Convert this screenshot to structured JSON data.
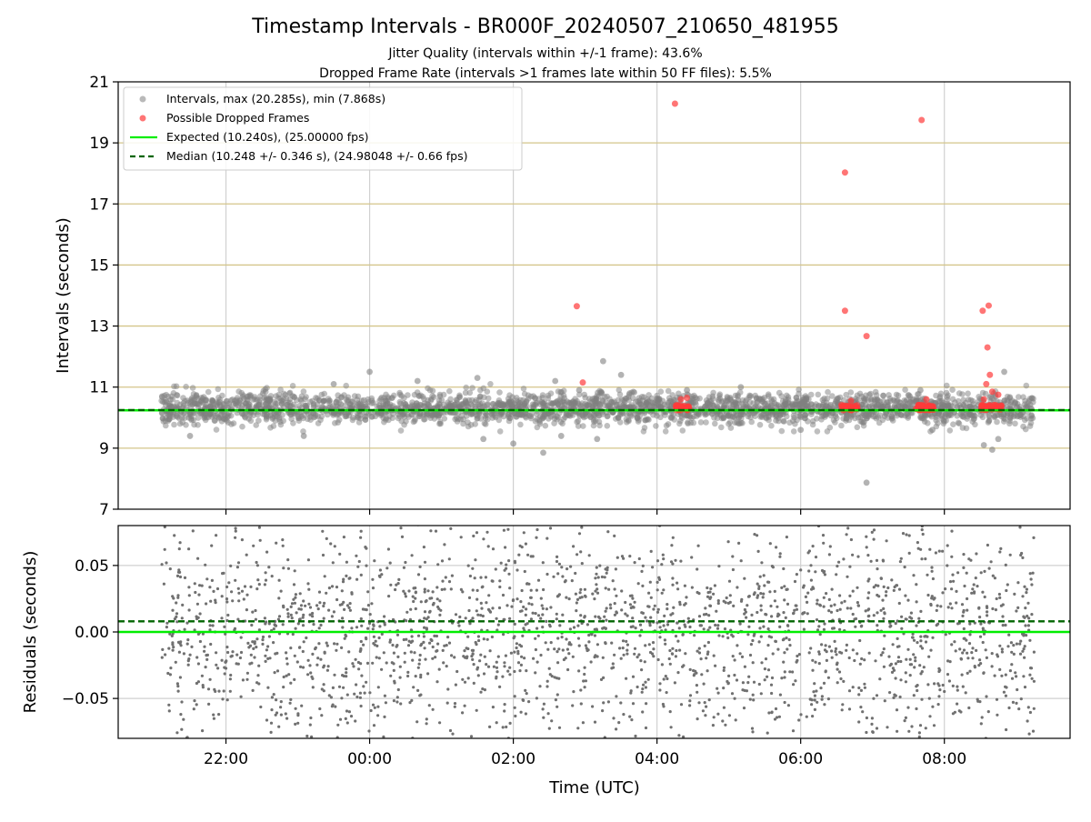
{
  "chart_data": {
    "type": "scatter",
    "title": "Timestamp Intervals - BR000F_20240507_210650_481955",
    "subtitle_lines": [
      "Jitter Quality (intervals within +/-1 frame): 43.6%",
      "Dropped Frame Rate (intervals >1 frames late within 50 FF files): 5.5%"
    ],
    "xlabel": "Time (UTC)",
    "x_unit": "hours (UTC, continuing past midnight)",
    "x_range": [
      "20:30",
      "09:45"
    ],
    "x_tick_labels": [
      "22:00",
      "00:00",
      "02:00",
      "04:00",
      "06:00",
      "08:00"
    ],
    "x_ticks": [
      "22:00",
      "00:00",
      "02:00",
      "04:00",
      "06:00",
      "08:00"
    ],
    "grid": true,
    "top_panel": {
      "ylabel": "Intervals (seconds)",
      "ylim": [
        7,
        21
      ],
      "y_ticks": [
        7,
        9,
        11,
        13,
        15,
        17,
        19,
        21
      ],
      "hlines_frame_grid": [
        9,
        11,
        13,
        15,
        17,
        19
      ],
      "expected": 10.24,
      "median": 10.248,
      "legend_position": "upper-left",
      "legend": [
        "Intervals, max (20.285s), min (7.868s)",
        "Possible Dropped Frames",
        "Expected (10.240s), (25.00000 fps)",
        "Median (10.248 +/- 0.346 s), (24.98048 +/- 0.66 fps)"
      ],
      "series": [
        {
          "name": "Intervals, max (20.285s), min (7.868s)",
          "color": "#808080",
          "band": {
            "x_start": "21:06",
            "x_end": "09:15",
            "center": 10.3,
            "spread": 0.3
          },
          "outliers": [
            [
              "00:00",
              11.5
            ],
            [
              "02:35",
              11.2
            ],
            [
              "03:15",
              11.85
            ],
            [
              "03:10",
              9.3
            ],
            [
              "02:25",
              8.85
            ],
            [
              "02:00",
              9.15
            ],
            [
              "06:00",
              9.6
            ],
            [
              "06:55",
              7.87
            ],
            [
              "08:50",
              11.5
            ],
            [
              "08:45",
              9.3
            ],
            [
              "08:40",
              8.95
            ],
            [
              "08:33",
              9.1
            ],
            [
              "21:30",
              9.4
            ],
            [
              "23:05",
              9.4
            ],
            [
              "01:30",
              11.3
            ],
            [
              "23:30",
              11.1
            ],
            [
              "00:40",
              11.2
            ],
            [
              "01:35",
              9.3
            ],
            [
              "03:30",
              11.4
            ],
            [
              "05:10",
              11.0
            ],
            [
              "04:25",
              10.9
            ],
            [
              "07:40",
              10.9
            ],
            [
              "07:50",
              9.6
            ],
            [
              "02:40",
              9.4
            ],
            [
              "02:55",
              10.9
            ]
          ]
        },
        {
          "name": "Possible Dropped Frames",
          "color": "#ff3b3b",
          "points": [
            [
              "02:53",
              13.65
            ],
            [
              "02:58",
              11.15
            ],
            [
              "04:15",
              20.285
            ],
            [
              "06:37",
              18.03
            ],
            [
              "06:37",
              13.5
            ],
            [
              "06:55",
              12.67
            ],
            [
              "07:41",
              19.75
            ],
            [
              "08:32",
              13.5
            ],
            [
              "08:37",
              13.67
            ],
            [
              "08:36",
              12.3
            ],
            [
              "08:38",
              11.4
            ],
            [
              "08:35",
              11.1
            ],
            [
              "08:40",
              10.85
            ],
            [
              "04:20",
              10.6
            ],
            [
              "04:25",
              10.65
            ],
            [
              "06:42",
              10.55
            ],
            [
              "07:45",
              10.6
            ],
            [
              "08:33",
              10.6
            ],
            [
              "08:45",
              10.75
            ]
          ],
          "clusters": [
            {
              "x_start": "04:15",
              "x_end": "04:27",
              "y": 10.33
            },
            {
              "x_start": "06:34",
              "x_end": "06:48",
              "y": 10.33
            },
            {
              "x_start": "07:36",
              "x_end": "07:52",
              "y": 10.33
            },
            {
              "x_start": "08:30",
              "x_end": "08:48",
              "y": 10.33
            }
          ]
        },
        {
          "name": "Expected (10.240s), (25.00000 fps)",
          "color": "#00ee00",
          "y": 10.24,
          "style": "solid"
        },
        {
          "name": "Median (10.248 +/- 0.346 s), (24.98048 +/- 0.66 fps)",
          "color": "#006400",
          "y": 10.248,
          "style": "dashed"
        }
      ]
    },
    "bottom_panel": {
      "ylabel": "Residuals (seconds)",
      "ylim": [
        -0.08,
        0.08
      ],
      "y_ticks": [
        -0.05,
        0.0,
        0.05
      ],
      "y_tick_labels": [
        "−0.05",
        "0.00",
        "0.05"
      ],
      "series": [
        {
          "name": "residuals",
          "color": "#707070",
          "x_start": "21:06",
          "x_end": "09:15",
          "y_spread": 0.08
        },
        {
          "name": "expected",
          "color": "#00ee00",
          "y": 0.0,
          "style": "solid"
        },
        {
          "name": "median",
          "color": "#006400",
          "y": 0.008,
          "style": "dashed"
        }
      ]
    }
  }
}
